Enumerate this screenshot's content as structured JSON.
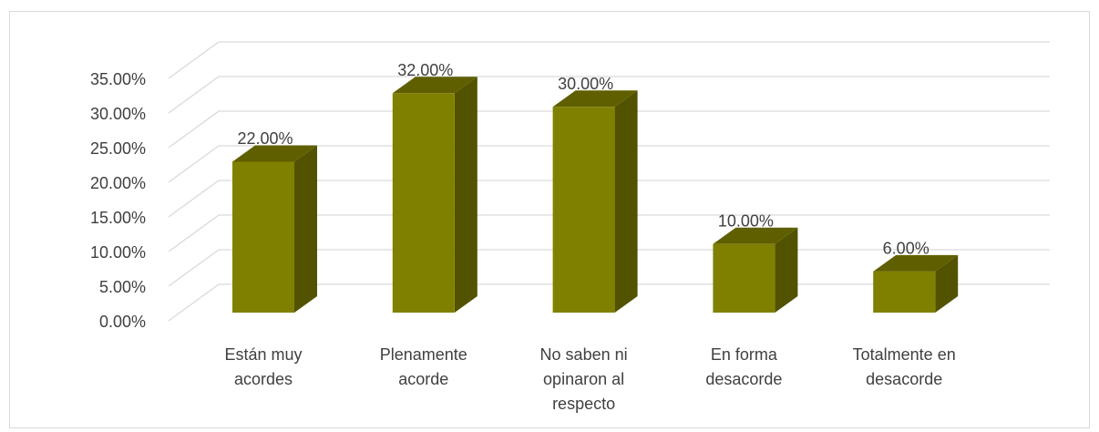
{
  "chart_data": {
    "type": "bar3d",
    "categories": [
      "Están muy acordes",
      "Plenamente acorde",
      "No saben ni opinaron al respecto",
      "En forma desacorde",
      "Totalmente en desacorde"
    ],
    "values": [
      22,
      32,
      30,
      10,
      6
    ],
    "value_labels": [
      "22.00%",
      "32.00%",
      "30.00%",
      "10.00%",
      "6.00%"
    ],
    "color": "#808000",
    "ylim": [
      0,
      35
    ],
    "yticks": [
      {
        "value": 0,
        "label": "0.00%"
      },
      {
        "value": 5,
        "label": "5.00%"
      },
      {
        "value": 10,
        "label": "10.00%"
      },
      {
        "value": 15,
        "label": "15.00%"
      },
      {
        "value": 20,
        "label": "20.00%"
      },
      {
        "value": 25,
        "label": "25.00%"
      },
      {
        "value": 30,
        "label": "30.00%"
      },
      {
        "value": 35,
        "label": "35.00%"
      }
    ],
    "grid": true
  }
}
